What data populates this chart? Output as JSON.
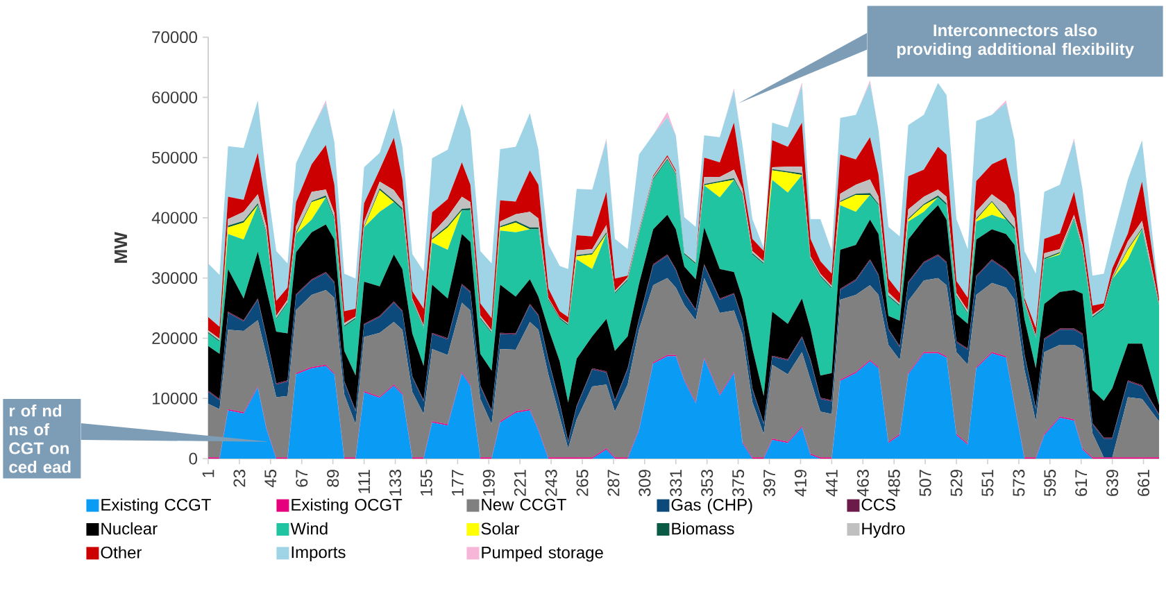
{
  "chart_data": {
    "type": "area",
    "stacked": true,
    "ylabel": "MW",
    "legend": "bottom",
    "xlim": [
      1,
      672
    ],
    "ylim": [
      0,
      70000
    ],
    "xticks": [
      1,
      23,
      45,
      67,
      89,
      111,
      133,
      155,
      177,
      199,
      221,
      243,
      265,
      287,
      309,
      331,
      353,
      375,
      397,
      419,
      441,
      463,
      485,
      507,
      529,
      551,
      573,
      595,
      617,
      639,
      661
    ],
    "yticks": [
      0,
      10000,
      20000,
      30000,
      40000,
      50000,
      60000,
      70000
    ],
    "annotations": [
      "Interconnectors also providing additional flexibility",
      "r of nd ns of CGT on ced ead"
    ],
    "x": [
      1,
      9,
      15,
      26,
      36,
      42,
      49,
      57,
      63,
      74,
      84,
      90,
      97,
      105,
      111,
      122,
      132,
      138,
      145,
      153,
      159,
      170,
      180,
      186,
      193,
      201,
      207,
      218,
      228,
      234,
      241,
      249,
      255,
      261,
      272,
      282,
      288,
      297,
      305,
      315,
      325,
      331,
      337,
      345,
      351,
      362,
      372,
      378,
      385,
      393,
      399,
      410,
      420,
      426,
      433,
      441,
      447,
      458,
      468,
      474,
      481,
      489,
      495,
      506,
      516,
      522,
      529,
      537,
      543,
      554,
      564,
      570,
      577,
      585,
      591,
      602,
      612,
      618,
      625,
      633,
      639,
      650,
      660,
      672
    ],
    "series": [
      {
        "name": "Existing CCGT",
        "color": "#0a9cf5",
        "values": [
          0,
          0,
          8000,
          7500,
          11800,
          5000,
          0,
          0,
          14000,
          15000,
          15400,
          14000,
          0,
          0,
          11000,
          10100,
          12100,
          10600,
          0,
          0,
          6000,
          5500,
          14200,
          12100,
          0,
          0,
          6000,
          7600,
          8000,
          4700,
          0,
          0,
          0,
          0,
          0,
          1500,
          0,
          0,
          4700,
          15800,
          17000,
          17000,
          12900,
          9200,
          16600,
          10500,
          14200,
          2600,
          0,
          0,
          3100,
          2600,
          5200,
          600,
          0,
          0,
          12900,
          14200,
          16200,
          15000,
          2600,
          3900,
          14000,
          17500,
          17500,
          16800,
          3900,
          2300,
          15000,
          17500,
          16800,
          8900,
          0,
          0,
          3900,
          6800,
          6300,
          1500,
          0,
          0,
          0,
          0,
          0,
          0
        ]
      },
      {
        "name": "Existing OCGT",
        "color": "#e6007e",
        "values": [
          200,
          200,
          200,
          200,
          200,
          200,
          200,
          200,
          200,
          200,
          200,
          200,
          200,
          200,
          200,
          200,
          200,
          200,
          200,
          200,
          200,
          200,
          200,
          200,
          200,
          200,
          200,
          200,
          200,
          200,
          200,
          200,
          200,
          200,
          200,
          200,
          200,
          200,
          200,
          200,
          200,
          200,
          200,
          200,
          200,
          200,
          200,
          200,
          200,
          200,
          200,
          200,
          200,
          200,
          200,
          200,
          200,
          200,
          200,
          200,
          200,
          200,
          200,
          200,
          200,
          200,
          200,
          200,
          200,
          200,
          200,
          200,
          200,
          200,
          200,
          200,
          200,
          200,
          200,
          200,
          200,
          200,
          200,
          200
        ]
      },
      {
        "name": "New CCGT",
        "color": "#808080",
        "values": [
          8900,
          8000,
          13200,
          13500,
          11000,
          12000,
          10000,
          10200,
          10500,
          12000,
          12400,
          12500,
          10500,
          5500,
          9000,
          10600,
          10400,
          10600,
          10900,
          7200,
          12000,
          11500,
          11500,
          12300,
          9700,
          5500,
          12000,
          10300,
          14500,
          16500,
          13800,
          6800,
          1500,
          6300,
          11800,
          10600,
          7600,
          12100,
          16500,
          12800,
          12800,
          11200,
          12400,
          13600,
          13200,
          13500,
          10200,
          17800,
          9200,
          3900,
          12300,
          11200,
          12300,
          12300,
          7600,
          7200,
          13300,
          12800,
          12400,
          12000,
          16100,
          12300,
          12000,
          11900,
          12300,
          11800,
          13600,
          13100,
          12000,
          11500,
          11400,
          17300,
          14600,
          6000,
          13600,
          11900,
          12400,
          16400,
          4000,
          0,
          0,
          10000,
          9700,
          6000
        ]
      },
      {
        "name": "Gas (CHP)",
        "color": "#0b4a7a",
        "values": [
          2000,
          1500,
          2800,
          1600,
          3400,
          3000,
          2100,
          2400,
          2400,
          2400,
          2800,
          2500,
          2000,
          2100,
          2000,
          2600,
          3200,
          3000,
          2400,
          2100,
          2500,
          2600,
          2900,
          3000,
          2100,
          2100,
          2500,
          2500,
          2800,
          2300,
          2400,
          2100,
          1000,
          2100,
          2800,
          2000,
          1700,
          2500,
          1600,
          3300,
          3700,
          2900,
          2000,
          1600,
          2100,
          2200,
          2700,
          2400,
          2100,
          1600,
          1300,
          2300,
          2400,
          3200,
          2100,
          2100,
          1600,
          2400,
          4100,
          3200,
          2500,
          2100,
          3000,
          2900,
          3700,
          3700,
          1600,
          2500,
          3000,
          3700,
          2900,
          3200,
          2400,
          2000,
          2100,
          2500,
          2500,
          2500,
          1500,
          3100,
          3100,
          2600,
          2100,
          1000
        ]
      },
      {
        "name": "CCS",
        "color": "#6b1a4a",
        "values": [
          200,
          200,
          200,
          200,
          200,
          200,
          200,
          200,
          200,
          200,
          200,
          200,
          200,
          200,
          200,
          200,
          200,
          200,
          200,
          200,
          200,
          200,
          200,
          200,
          200,
          200,
          200,
          200,
          200,
          200,
          200,
          200,
          200,
          200,
          200,
          200,
          200,
          200,
          200,
          200,
          200,
          200,
          200,
          200,
          200,
          200,
          200,
          200,
          200,
          200,
          200,
          200,
          200,
          200,
          200,
          200,
          200,
          200,
          200,
          200,
          200,
          200,
          200,
          200,
          200,
          200,
          200,
          200,
          200,
          200,
          200,
          200,
          200,
          200,
          200,
          200,
          200,
          200,
          200,
          200,
          200,
          200,
          200,
          200
        ]
      },
      {
        "name": "Nuclear",
        "color": "#000000",
        "values": [
          7400,
          7500,
          7100,
          3600,
          7800,
          7800,
          8600,
          7800,
          7000,
          7800,
          7900,
          7000,
          5000,
          5800,
          7000,
          4900,
          7800,
          6900,
          7100,
          5700,
          8000,
          6600,
          8300,
          8200,
          5200,
          6600,
          8000,
          6100,
          4100,
          3000,
          5000,
          6900,
          6400,
          7800,
          5300,
          8700,
          8200,
          5300,
          5800,
          5800,
          6600,
          6600,
          4200,
          5000,
          6100,
          4900,
          3500,
          3400,
          6600,
          4500,
          7300,
          5900,
          6300,
          5100,
          3700,
          4500,
          6500,
          5700,
          6600,
          6700,
          2100,
          4200,
          7000,
          7000,
          8200,
          7000,
          4500,
          4100,
          6000,
          5000,
          5800,
          5700,
          5800,
          6600,
          5700,
          6100,
          6400,
          6600,
          5500,
          6100,
          8200,
          6100,
          6900,
          1500
        ]
      },
      {
        "name": "Wind",
        "color": "#20c4a0",
        "values": [
          2100,
          2000,
          5800,
          9800,
          7700,
          9100,
          2000,
          5000,
          3000,
          2100,
          4500,
          3300,
          4000,
          9400,
          9000,
          12400,
          8700,
          9800,
          5300,
          6200,
          7000,
          8100,
          3900,
          5300,
          5800,
          6200,
          9000,
          10700,
          8300,
          11200,
          4700,
          7000,
          12800,
          16500,
          11200,
          14100,
          9500,
          9300,
          8300,
          8200,
          9100,
          9000,
          2000,
          2500,
          7000,
          11900,
          15300,
          17200,
          15600,
          21900,
          21900,
          21800,
          20500,
          11500,
          16400,
          14000,
          7400,
          5500,
          4100,
          4800,
          3200,
          2400,
          3000,
          1300,
          1300,
          2400,
          2900,
          1600,
          3000,
          2400,
          2400,
          2600,
          2500,
          5000,
          7400,
          6200,
          11700,
          7300,
          12000,
          15200,
          18100,
          14000,
          19000,
          16500
        ]
      },
      {
        "name": "Solar",
        "color": "#ffff00",
        "values": [
          0,
          0,
          1100,
          2800,
          0,
          0,
          0,
          0,
          0,
          2900,
          0,
          0,
          0,
          0,
          0,
          3600,
          0,
          0,
          0,
          0,
          500,
          3700,
          0,
          0,
          0,
          0,
          500,
          1600,
          0,
          0,
          0,
          0,
          0,
          500,
          2400,
          0,
          0,
          0,
          0,
          0,
          0,
          0,
          0,
          0,
          0,
          2500,
          0,
          0,
          0,
          0,
          1600,
          3300,
          0,
          0,
          0,
          0,
          500,
          2800,
          0,
          0,
          0,
          0,
          300,
          1100,
          0,
          0,
          0,
          0,
          300,
          2100,
          0,
          0,
          0,
          0,
          0,
          200,
          0,
          0,
          0,
          0,
          0,
          1600,
          0,
          0
        ]
      },
      {
        "name": "Biomass",
        "color": "#0b5a45",
        "values": [
          200,
          200,
          300,
          300,
          300,
          300,
          200,
          200,
          300,
          200,
          300,
          300,
          200,
          200,
          200,
          300,
          300,
          300,
          200,
          200,
          200,
          300,
          300,
          300,
          200,
          200,
          200,
          300,
          300,
          300,
          200,
          200,
          200,
          200,
          200,
          300,
          200,
          200,
          200,
          200,
          200,
          200,
          200,
          200,
          200,
          200,
          300,
          200,
          200,
          200,
          200,
          200,
          300,
          200,
          200,
          200,
          200,
          200,
          300,
          200,
          200,
          200,
          200,
          200,
          300,
          300,
          200,
          200,
          200,
          200,
          300,
          300,
          200,
          200,
          200,
          200,
          200,
          200,
          200,
          200,
          200,
          200,
          200,
          200
        ]
      },
      {
        "name": "Hydro",
        "color": "#c0c0c0",
        "values": [
          300,
          300,
          1100,
          1500,
          1500,
          1000,
          400,
          400,
          1000,
          1500,
          1000,
          800,
          400,
          200,
          800,
          1100,
          1700,
          1000,
          300,
          300,
          800,
          1500,
          2000,
          1000,
          400,
          300,
          800,
          1100,
          2600,
          1500,
          200,
          100,
          200,
          800,
          700,
          1200,
          300,
          300,
          300,
          300,
          300,
          300,
          200,
          200,
          1200,
          700,
          1400,
          800,
          400,
          300,
          300,
          800,
          1100,
          300,
          300,
          300,
          1200,
          1500,
          2300,
          1200,
          500,
          300,
          1500,
          1200,
          1000,
          1100,
          400,
          400,
          1200,
          1100,
          2200,
          1500,
          300,
          200,
          800,
          500,
          600,
          500,
          300,
          200,
          200,
          1200,
          1200,
          200
        ]
      },
      {
        "name": "Other",
        "color": "#cc0000",
        "values": [
          2200,
          2000,
          3700,
          2000,
          6900,
          2800,
          2500,
          2000,
          4000,
          4600,
          7400,
          4700,
          2000,
          1300,
          3000,
          2000,
          8700,
          3800,
          1200,
          2800,
          3500,
          2900,
          5700,
          2900,
          2000,
          2000,
          3500,
          2100,
          6900,
          5600,
          1600,
          1000,
          1000,
          2500,
          2100,
          5500,
          2000,
          300,
          200,
          200,
          300,
          300,
          0,
          0,
          3200,
          2400,
          7800,
          1600,
          2000,
          1700,
          4500,
          3300,
          7300,
          2900,
          2100,
          2000,
          6500,
          4200,
          7000,
          3700,
          2300,
          1700,
          5500,
          4500,
          7100,
          7000,
          2000,
          2100,
          5000,
          5000,
          7800,
          4000,
          500,
          1300,
          2400,
          2600,
          3800,
          2000,
          1500,
          600,
          1400,
          1300,
          6500,
          700
        ]
      },
      {
        "name": "Imports",
        "color": "#9fd3e6",
        "values": [
          8900,
          8600,
          8400,
          8600,
          8700,
          5000,
          8300,
          4000,
          6500,
          5700,
          7000,
          7100,
          6200,
          5000,
          6000,
          2800,
          4900,
          5400,
          6200,
          6200,
          9000,
          8200,
          9700,
          9100,
          8700,
          9100,
          8500,
          9100,
          9500,
          5800,
          7300,
          7500,
          8000,
          7700,
          7800,
          8600,
          6600,
          4400,
          12500,
          6800,
          6300,
          5800,
          5800,
          5800,
          3700,
          4200,
          5400,
          5700,
          3300,
          500,
          2900,
          3200,
          6200,
          3300,
          7000,
          3800,
          6100,
          7400,
          9000,
          7400,
          8600,
          9400,
          8500,
          9100,
          10600,
          9900,
          10300,
          8100,
          10000,
          8200,
          9100,
          9000,
          7800,
          9000,
          7800,
          8100,
          8600,
          7300,
          5000,
          4900,
          4900,
          9000,
          6900,
          500
        ]
      },
      {
        "name": "Pumped storage",
        "color": "#f7b6d8",
        "values": [
          0,
          0,
          0,
          0,
          0,
          0,
          0,
          0,
          0,
          0,
          400,
          0,
          0,
          0,
          0,
          0,
          0,
          0,
          0,
          0,
          0,
          0,
          0,
          0,
          0,
          0,
          0,
          0,
          0,
          0,
          0,
          0,
          0,
          0,
          0,
          300,
          0,
          0,
          0,
          0,
          900,
          0,
          0,
          0,
          0,
          0,
          300,
          0,
          0,
          0,
          0,
          0,
          500,
          0,
          0,
          0,
          0,
          0,
          400,
          0,
          0,
          0,
          0,
          0,
          0,
          0,
          0,
          0,
          0,
          0,
          400,
          0,
          0,
          0,
          0,
          0,
          300,
          0,
          0,
          0,
          0,
          0,
          0,
          0
        ]
      }
    ]
  }
}
